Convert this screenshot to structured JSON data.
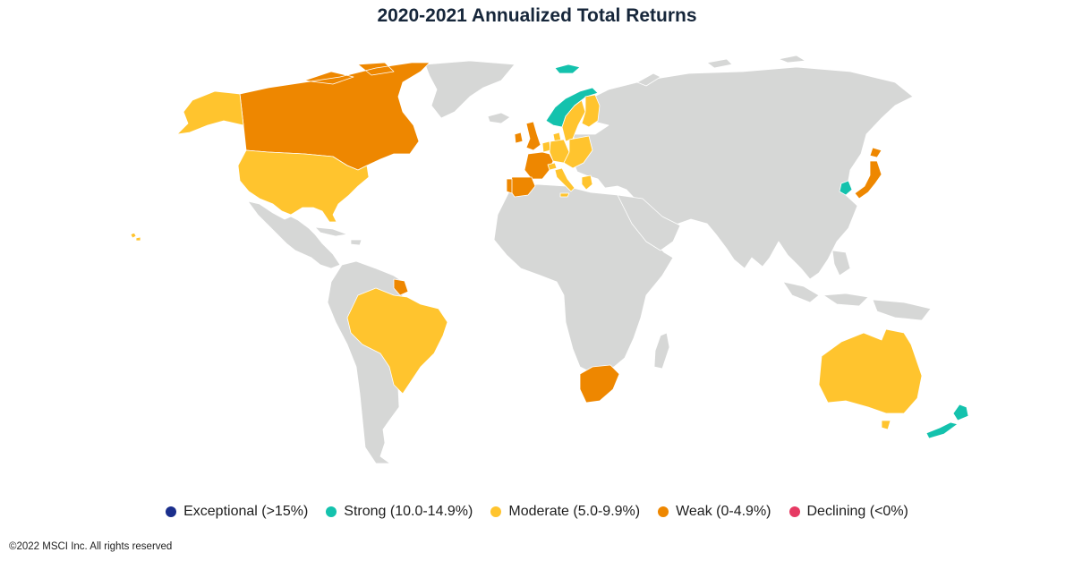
{
  "title": "2020-2021 Annualized Total Returns",
  "footer": "©2022 MSCI Inc. All rights reserved",
  "colors": {
    "land": "#d6d7d6",
    "ocean": "#ffffff",
    "border": "#ffffff",
    "exceptional": "#1a2e8c",
    "strong": "#14c2ad",
    "moderate": "#ffc42e",
    "weak": "#ee8700",
    "declining": "#e63a63"
  },
  "legend": [
    {
      "key": "exceptional",
      "label": "Exceptional (>15%)"
    },
    {
      "key": "strong",
      "label": "Strong (10.0-14.9%)"
    },
    {
      "key": "moderate",
      "label": "Moderate (5.0-9.9%)"
    },
    {
      "key": "weak",
      "label": "Weak (0-4.9%)"
    },
    {
      "key": "declining",
      "label": "Declining (<0%)"
    }
  ],
  "regions": [
    {
      "name": "Canada",
      "category": "weak"
    },
    {
      "name": "United States",
      "category": "moderate"
    },
    {
      "name": "Alaska",
      "category": "moderate"
    },
    {
      "name": "Hawaii",
      "category": "moderate"
    },
    {
      "name": "Brazil",
      "category": "moderate"
    },
    {
      "name": "French Guiana",
      "category": "weak"
    },
    {
      "name": "Norway",
      "category": "strong"
    },
    {
      "name": "Svalbard",
      "category": "strong"
    },
    {
      "name": "Sweden",
      "category": "moderate"
    },
    {
      "name": "Finland",
      "category": "moderate"
    },
    {
      "name": "Denmark",
      "category": "moderate"
    },
    {
      "name": "United Kingdom",
      "category": "weak"
    },
    {
      "name": "Ireland",
      "category": "weak"
    },
    {
      "name": "France",
      "category": "weak"
    },
    {
      "name": "Spain",
      "category": "weak"
    },
    {
      "name": "Portugal",
      "category": "weak"
    },
    {
      "name": "Italy",
      "category": "moderate"
    },
    {
      "name": "Germany",
      "category": "moderate"
    },
    {
      "name": "Netherlands",
      "category": "moderate"
    },
    {
      "name": "Belgium",
      "category": "moderate"
    },
    {
      "name": "Switzerland",
      "category": "moderate"
    },
    {
      "name": "Austria",
      "category": "moderate"
    },
    {
      "name": "Poland",
      "category": "moderate"
    },
    {
      "name": "Czech Republic",
      "category": "moderate"
    },
    {
      "name": "Hungary",
      "category": "moderate"
    },
    {
      "name": "Greece",
      "category": "moderate"
    },
    {
      "name": "South Korea",
      "category": "strong"
    },
    {
      "name": "Japan",
      "category": "weak"
    },
    {
      "name": "Australia",
      "category": "moderate"
    },
    {
      "name": "New Zealand",
      "category": "strong"
    },
    {
      "name": "South Africa",
      "category": "weak"
    }
  ]
}
